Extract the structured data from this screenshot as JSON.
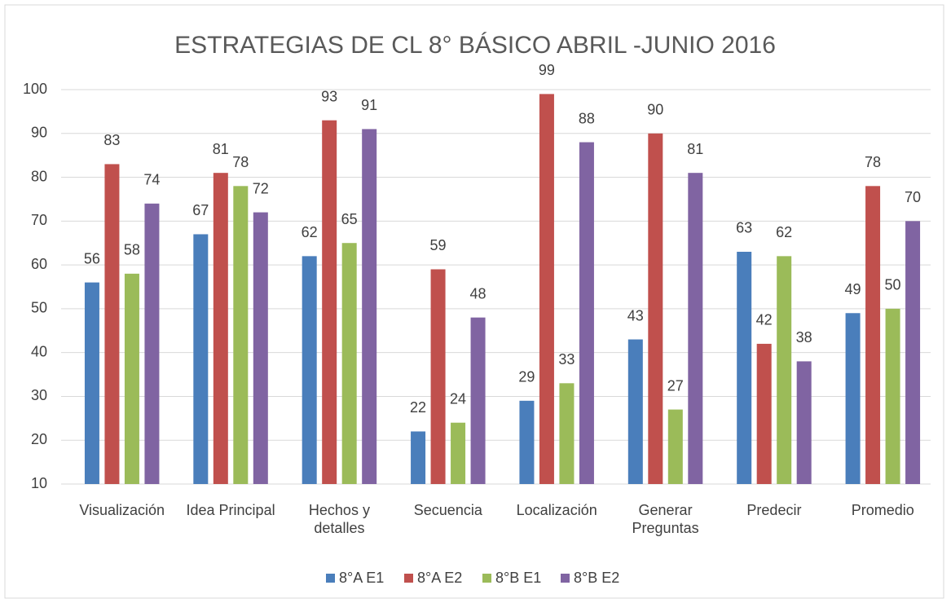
{
  "chart_data": {
    "type": "bar",
    "title": "ESTRATEGIAS DE CL 8° BÁSICO ABRIL -JUNIO 2016",
    "categories": [
      "Visualización",
      "Idea Principal",
      "Hechos y detalles",
      "Secuencia",
      "Localización",
      "Generar Preguntas",
      "Predecir",
      "Promedio"
    ],
    "series": [
      {
        "name": "8°A E1",
        "color": "#4a7ebb",
        "values": [
          56,
          67,
          62,
          22,
          29,
          43,
          63,
          49
        ]
      },
      {
        "name": "8°A E2",
        "color": "#c0504d",
        "values": [
          83,
          81,
          93,
          59,
          99,
          90,
          42,
          78
        ]
      },
      {
        "name": "8°B E1",
        "color": "#9bbb59",
        "values": [
          58,
          78,
          65,
          24,
          33,
          27,
          62,
          50
        ]
      },
      {
        "name": "8°B E2",
        "color": "#8064a2",
        "values": [
          74,
          72,
          91,
          48,
          88,
          81,
          38,
          70
        ]
      }
    ],
    "ylim": [
      10,
      100
    ],
    "yticks": [
      10,
      20,
      30,
      40,
      50,
      60,
      70,
      80,
      90,
      100
    ],
    "grid": true,
    "legend": "bottom"
  }
}
